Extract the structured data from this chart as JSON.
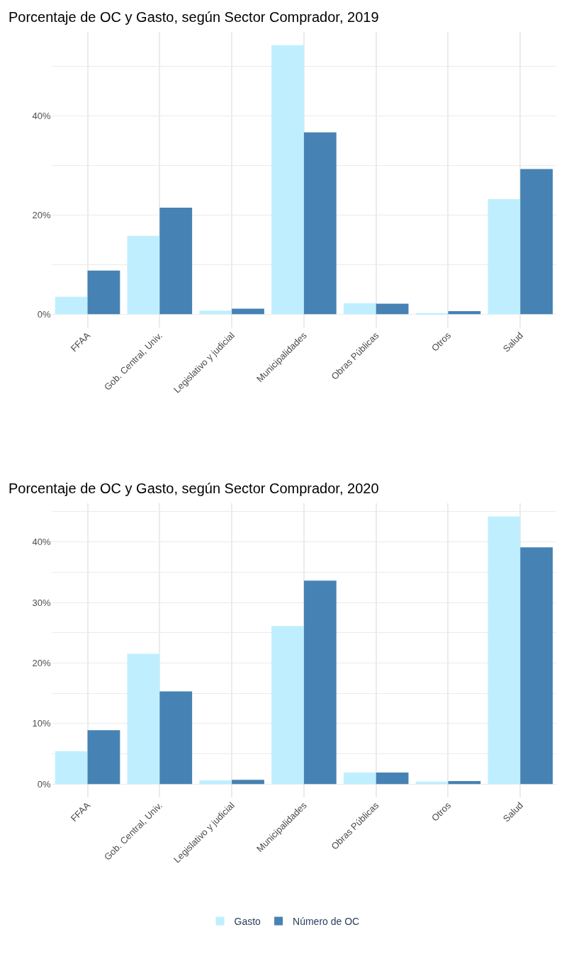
{
  "chart_data": [
    {
      "type": "bar",
      "title": "Porcentaje de OC y Gasto, según Sector Comprador, 2019",
      "categories": [
        "FFAA",
        "Gob. Central, Univ.",
        "Legislativo y judicial",
        "Municipalidades",
        "Obras Públicas",
        "Otros",
        "Salud"
      ],
      "series": [
        {
          "name": "Gasto",
          "color": "#bfefff",
          "values": [
            3.5,
            15.8,
            0.7,
            54.3,
            2.2,
            0.2,
            23.2
          ]
        },
        {
          "name": "Número de OC",
          "color": "#4682b4",
          "values": [
            8.8,
            21.5,
            1.1,
            36.7,
            2.1,
            0.6,
            29.3
          ]
        }
      ],
      "ylim": [
        -2.7,
        57
      ],
      "yticks": [
        {
          "value": 0,
          "label": "0%"
        },
        {
          "value": 10,
          "label": null
        },
        {
          "value": 20,
          "label": "20%"
        },
        {
          "value": 30,
          "label": null
        },
        {
          "value": 40,
          "label": "40%"
        },
        {
          "value": 50,
          "label": null
        }
      ],
      "grid": true,
      "legend": "bottom"
    },
    {
      "type": "bar",
      "title": "Porcentaje de OC y Gasto, según Sector Comprador, 2020",
      "categories": [
        "FFAA",
        "Gob. Central, Univ.",
        "Legislativo y judicial",
        "Municipalidades",
        "Obras Públicas",
        "Otros",
        "Salud"
      ],
      "series": [
        {
          "name": "Gasto",
          "color": "#bfefff",
          "values": [
            5.4,
            21.5,
            0.6,
            26.1,
            1.9,
            0.4,
            44.2
          ]
        },
        {
          "name": "Número de OC",
          "color": "#4682b4",
          "values": [
            8.9,
            15.3,
            0.7,
            33.6,
            1.9,
            0.5,
            39.1
          ]
        }
      ],
      "ylim": [
        -2.2,
        46.4
      ],
      "yticks": [
        {
          "value": 0,
          "label": "0%"
        },
        {
          "value": 5,
          "label": null
        },
        {
          "value": 10,
          "label": "10%"
        },
        {
          "value": 15,
          "label": null
        },
        {
          "value": 20,
          "label": "20%"
        },
        {
          "value": 25,
          "label": null
        },
        {
          "value": 30,
          "label": "30%"
        },
        {
          "value": 35,
          "label": null
        },
        {
          "value": 40,
          "label": "40%"
        },
        {
          "value": 45,
          "label": null
        }
      ],
      "grid": true,
      "legend": "bottom"
    }
  ]
}
